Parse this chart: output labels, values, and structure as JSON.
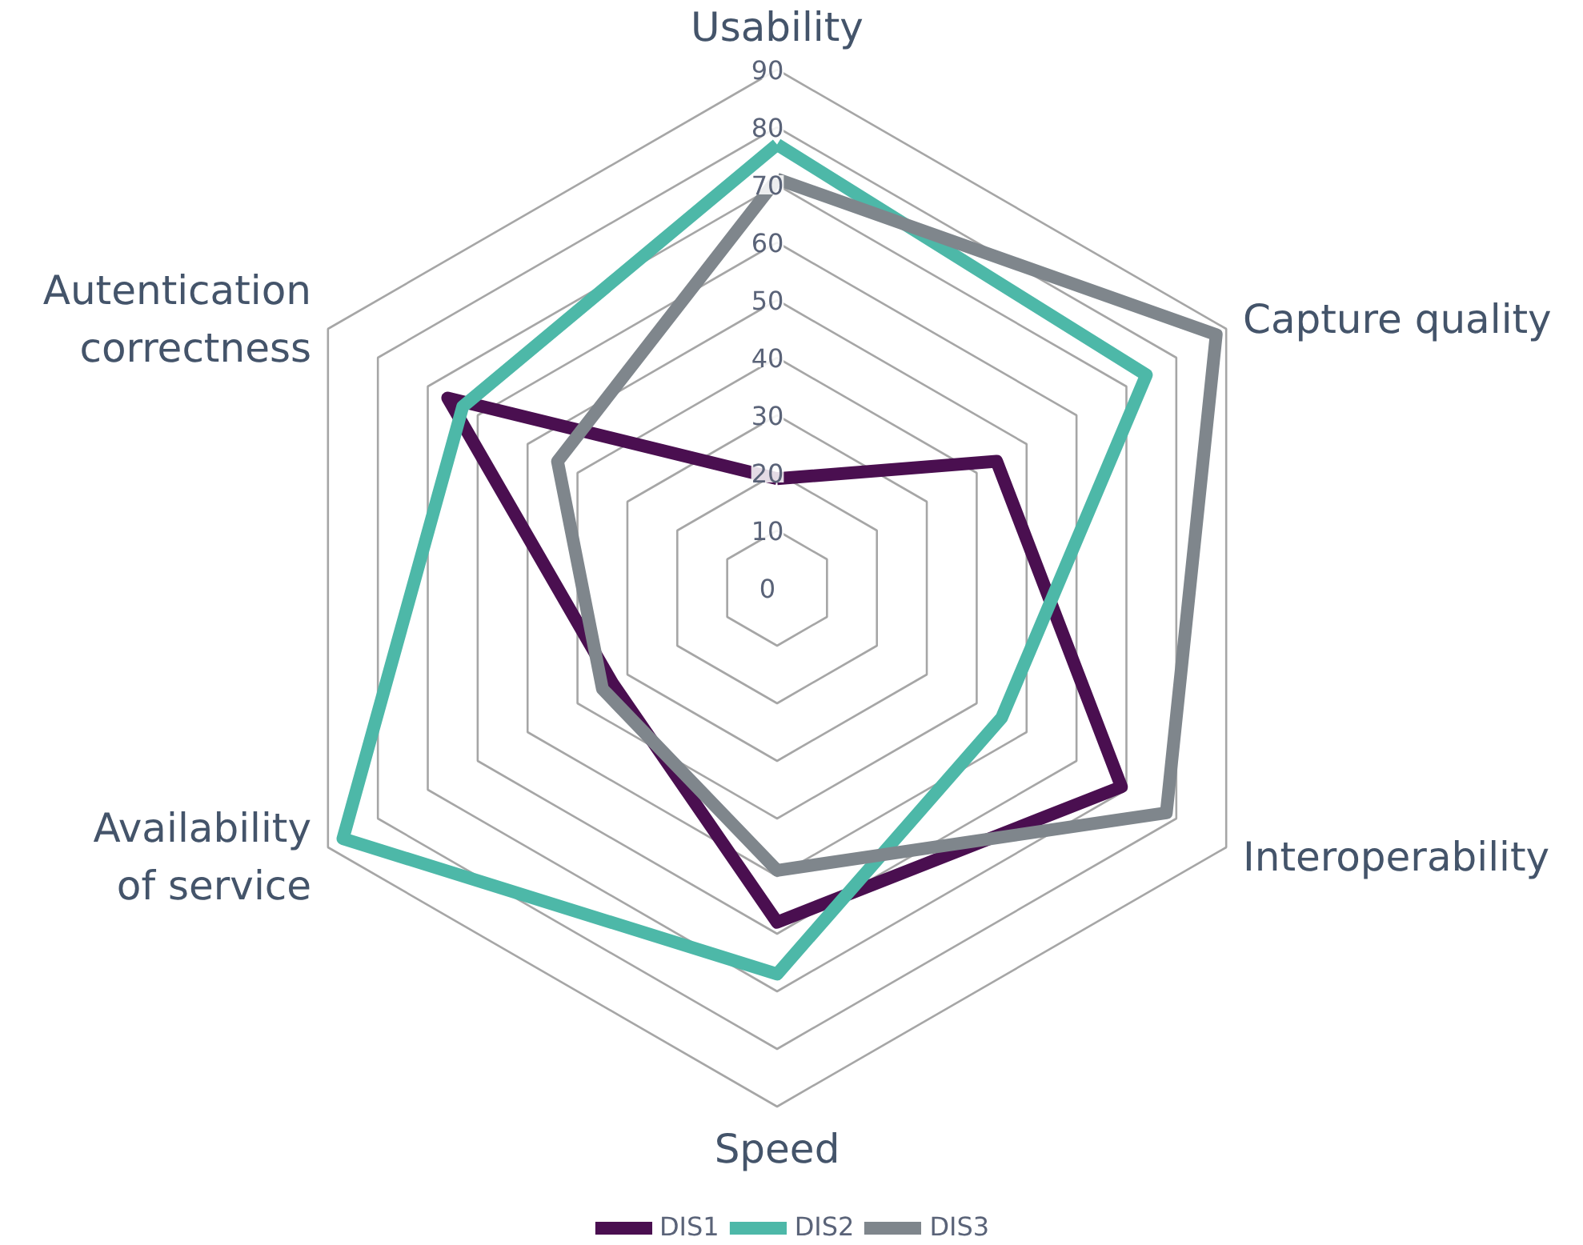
{
  "chart_data": {
    "type": "radar",
    "categories": [
      "Usability",
      "Capture quality",
      "Interoperability",
      "Speed",
      "Availability\nof service",
      "Autentication\ncorrectness"
    ],
    "ylim": [
      0,
      90
    ],
    "yticks": [
      0,
      10,
      20,
      30,
      40,
      50,
      60,
      70,
      80,
      90
    ],
    "grid": true,
    "legend": "bottom",
    "marker": "none",
    "line_style": "solid",
    "series": [
      {
        "name": "DIS1",
        "color": "#4a0f50",
        "values": [
          19,
          44,
          69,
          58,
          33,
          66
        ]
      },
      {
        "name": "DIS2",
        "color": "#4db8a8",
        "values": [
          77,
          74,
          45,
          67,
          87,
          63
        ]
      },
      {
        "name": "DIS3",
        "color": "#7f868c",
        "values": [
          71,
          88,
          78,
          49,
          35,
          44
        ]
      }
    ]
  }
}
